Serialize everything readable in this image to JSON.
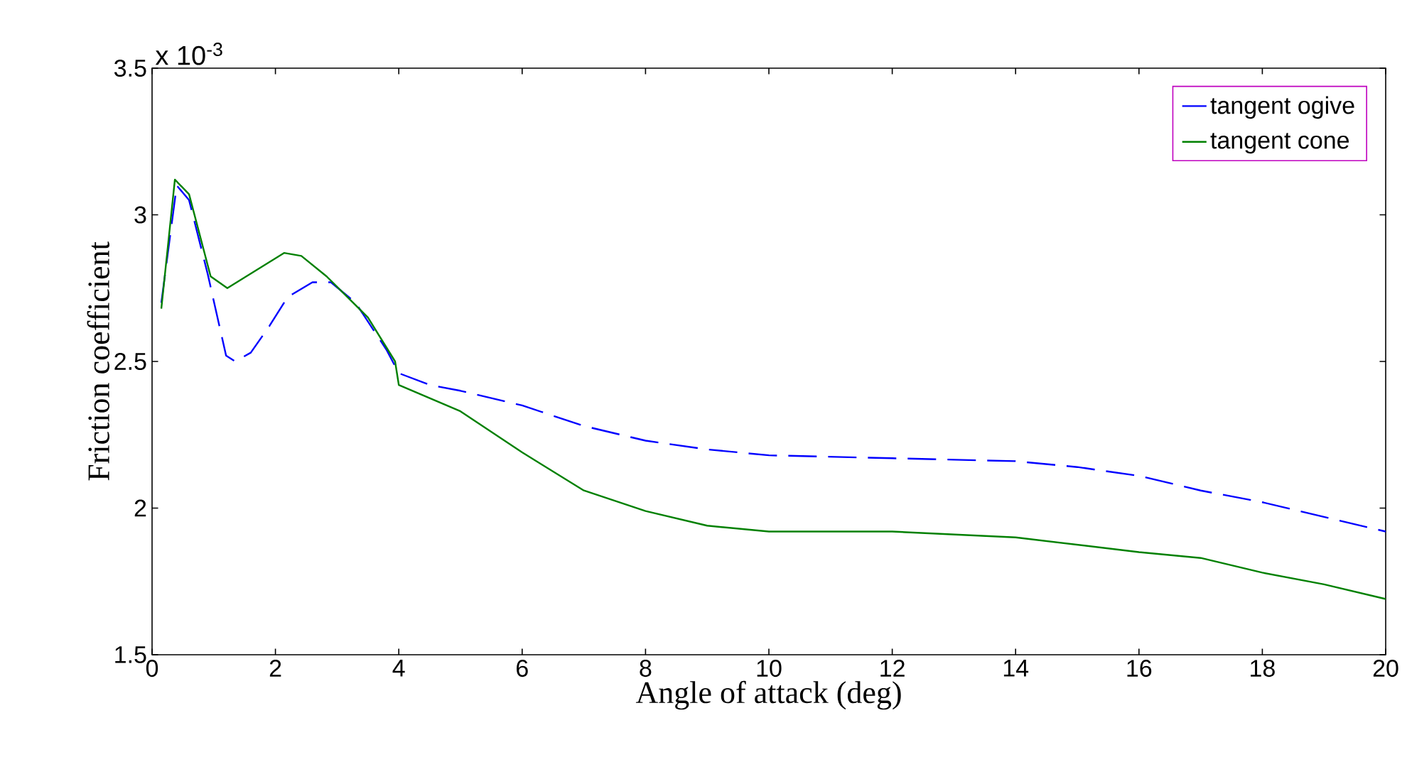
{
  "chart_data": {
    "type": "line",
    "xlabel": "Angle of attack (deg)",
    "ylabel": "Friction coefficient",
    "annotations": [
      "x 10$^{-3}$"
    ],
    "xlim": [
      0,
      20
    ],
    "ylim": [
      1.5,
      3.5
    ],
    "xticks": [
      0,
      2,
      4,
      6,
      8,
      10,
      12,
      14,
      16,
      18,
      20
    ],
    "yticks": [
      1.5,
      2,
      2.5,
      3,
      3.5
    ],
    "legend": "top right",
    "series": [
      {
        "name": "tangent ogive",
        "color": "#0000ff",
        "line_style": "dashed",
        "x": [
          0.15,
          0.4,
          0.6,
          0.9,
          1.2,
          1.35,
          1.6,
          1.9,
          2.2,
          2.6,
          2.9,
          3.3,
          3.8,
          4,
          4.5,
          5,
          6,
          7,
          8,
          9,
          10,
          12,
          14,
          15,
          16,
          17,
          18,
          19,
          20
        ],
        "values": [
          2.7,
          3.1,
          3.05,
          2.8,
          2.52,
          2.5,
          2.53,
          2.62,
          2.72,
          2.77,
          2.77,
          2.7,
          2.54,
          2.46,
          2.42,
          2.4,
          2.35,
          2.28,
          2.23,
          2.2,
          2.18,
          2.17,
          2.16,
          2.14,
          2.11,
          2.06,
          2.02,
          1.97,
          1.92
        ]
      },
      {
        "name": "tangent cone",
        "color": "#008000",
        "line_style": "solid",
        "x": [
          0.15,
          0.37,
          0.6,
          0.95,
          1.22,
          1.68,
          2.14,
          2.42,
          2.83,
          3.5,
          3.94,
          4,
          5,
          6,
          7,
          8,
          9,
          10,
          12,
          14,
          16,
          17,
          18,
          19,
          20
        ],
        "values": [
          2.68,
          3.12,
          3.07,
          2.79,
          2.75,
          2.81,
          2.87,
          2.86,
          2.79,
          2.65,
          2.5,
          2.42,
          2.33,
          2.19,
          2.06,
          1.99,
          1.94,
          1.92,
          1.92,
          1.9,
          1.85,
          1.83,
          1.78,
          1.74,
          1.69
        ]
      }
    ]
  }
}
